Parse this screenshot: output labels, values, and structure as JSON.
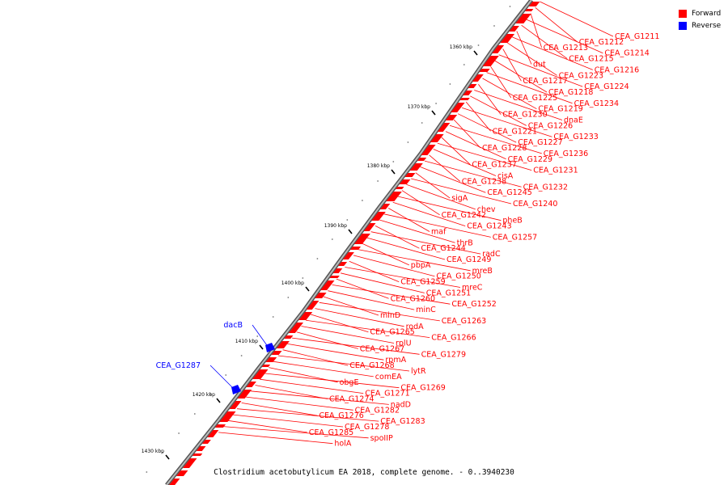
{
  "caption": "Clostridium acetobutylicum EA 2018, complete genome. - 0..3940230",
  "colors": {
    "forward": "#ff0000",
    "reverse": "#0000ff",
    "backbone": "#888888",
    "tick": "#000000"
  },
  "legend": [
    {
      "label": "Forward",
      "color": "#ff0000"
    },
    {
      "label": "Reverse",
      "color": "#0000ff"
    }
  ],
  "scale_ticks": [
    "1360 kbp",
    "1370 kbp",
    "1380 kbp",
    "1390 kbp",
    "1400 kbp",
    "1410 kbp",
    "1420 kbp",
    "1430 kbp"
  ],
  "forward_labels": [
    "CEA_G1211",
    "CEA_G1212",
    "CEA_G1213",
    "CEA_G1214",
    "CEA_G1215",
    "dut",
    "CEA_G1216",
    "CEA_G1223",
    "CEA_G1217",
    "CEA_G1224",
    "CEA_G1218",
    "CEA_G1225",
    "CEA_G1234",
    "CEA_G1219",
    "CEA_G1230",
    "dnaE",
    "CEA_G1226",
    "CEA_G1221",
    "CEA_G1233",
    "CEA_G1227",
    "CEA_G1228",
    "CEA_G1236",
    "CEA_G1229",
    "CEA_G1237",
    "CEA_G1231",
    "cisA",
    "CEA_G1238",
    "CEA_G1232",
    "CEA_G1245",
    "sigA",
    "CEA_G1240",
    "chev",
    "CEA_G1242",
    "pheB",
    "CEA_G1243",
    "maf",
    "CEA_G1257",
    "thrB",
    "CEA_G1244",
    "radC",
    "CEA_G1249",
    "pbpA",
    "mreB",
    "CEA_G1250",
    "CEA_G1259",
    "mreC",
    "CEA_G1251",
    "CEA_G1260",
    "CEA_G1252",
    "minC",
    "minD",
    "CEA_G1263",
    "rodA",
    "CEA_G1265",
    "CEA_G1266",
    "rplU",
    "CEA_G1267",
    "CEA_G1279",
    "rpmA",
    "CEA_G1268",
    "lytR",
    "comEA",
    "obgE",
    "CEA_G1269",
    "CEA_G1271",
    "CEA_G1274",
    "nadD",
    "CEA_G1282",
    "CEA_G1276",
    "CEA_G1283",
    "CEA_G1278",
    "CEA_G1285",
    "spoIIP",
    "holA"
  ],
  "reverse_labels": [
    "dacB",
    "CEA_G1287"
  ]
}
